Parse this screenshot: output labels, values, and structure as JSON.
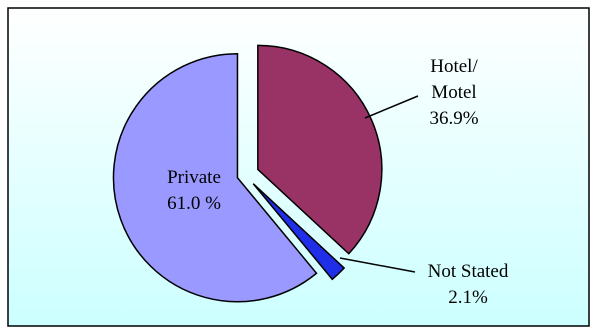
{
  "chart_data": {
    "type": "pie",
    "exploded": true,
    "slices": [
      {
        "label_lines": [
          "Hotel/",
          "Motel"
        ],
        "value_label": "36.9%",
        "value": 36.9,
        "color": "#993366"
      },
      {
        "label_lines": [
          "Not Stated"
        ],
        "value_label": "2.1%",
        "value": 2.1,
        "color": "#1f2fe8"
      },
      {
        "label_lines": [
          "Private"
        ],
        "value_label": "61.0 %",
        "value": 61.0,
        "color": "#9999ff"
      }
    ],
    "background": {
      "top": "#ffffff",
      "bottom": "#ccffff"
    },
    "title": ""
  }
}
